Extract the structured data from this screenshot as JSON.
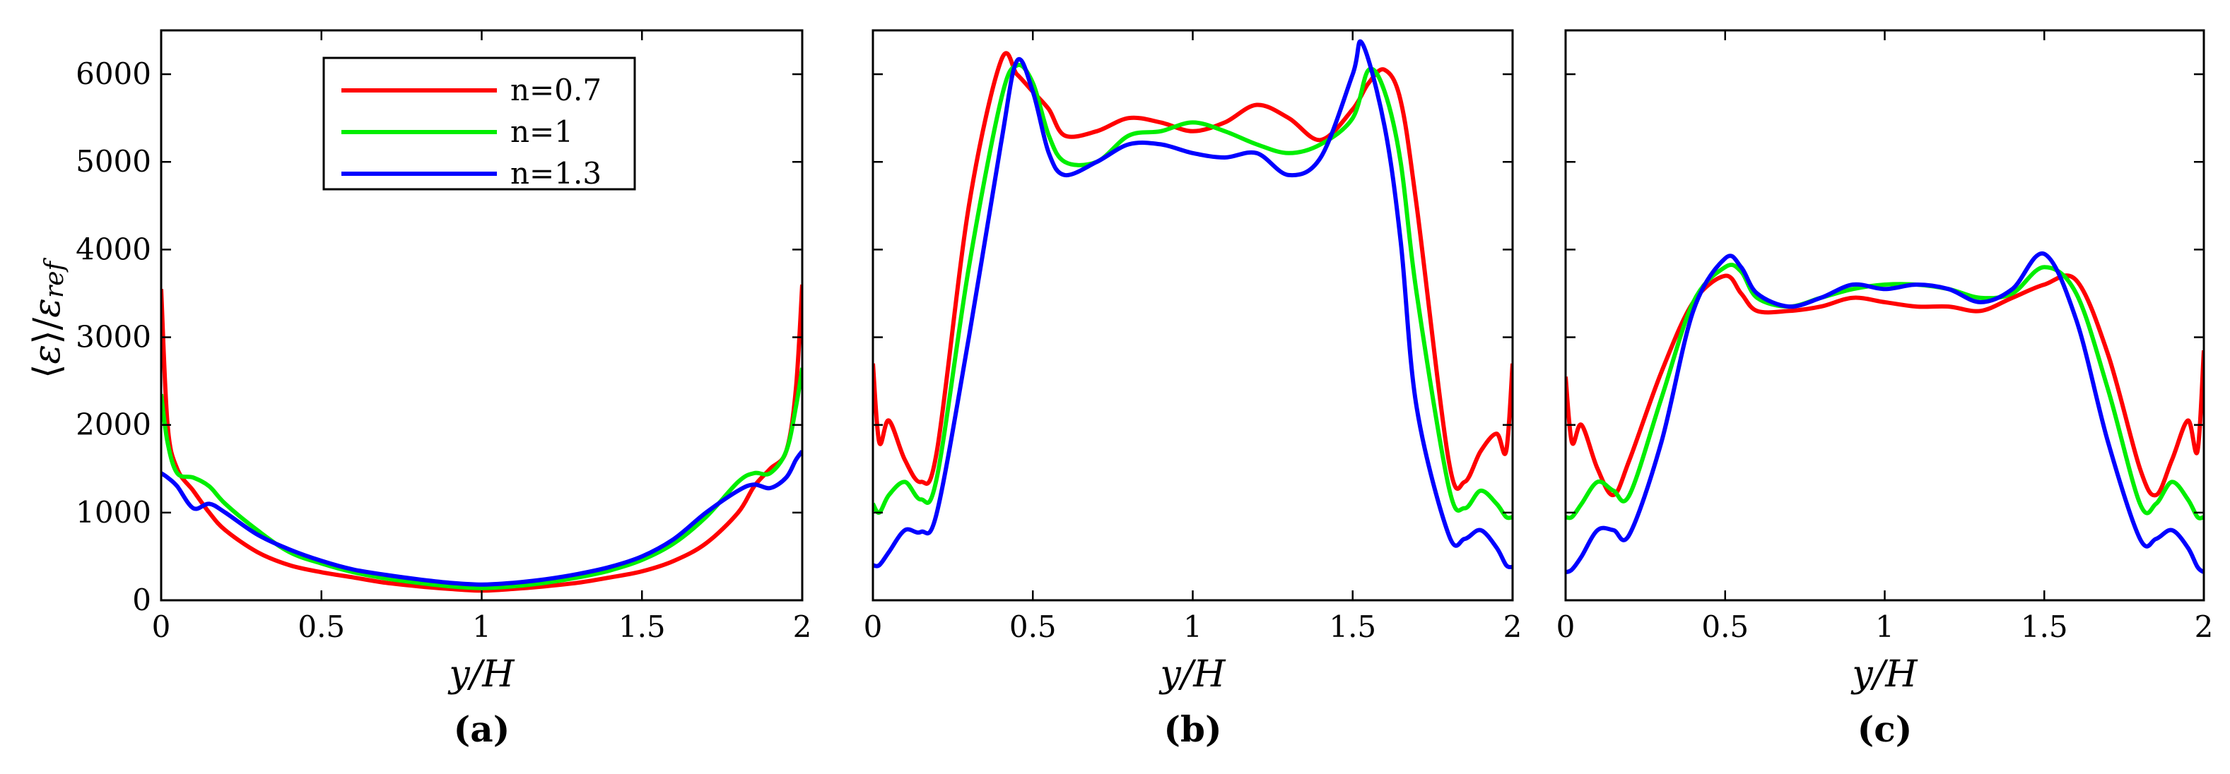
{
  "figure": {
    "ylabel": "⟨ε⟩/ε_ref",
    "legend": [
      {
        "label": "n=0.7",
        "color": "#ff0000"
      },
      {
        "label": "n=1",
        "color": "#00ee00"
      },
      {
        "label": "n=1.3",
        "color": "#0000ff"
      }
    ]
  },
  "chart_data": [
    {
      "type": "line",
      "panel_label": "(a)",
      "xlabel": "y/H",
      "ylabel": "⟨ε⟩/ε_ref",
      "xlim": [
        0,
        2
      ],
      "ylim": [
        0,
        6500
      ],
      "xticks": [
        0,
        0.5,
        1,
        1.5,
        2
      ],
      "xtick_labels": [
        "0",
        "0.5",
        "1",
        "1.5",
        "2"
      ],
      "yticks": [
        0,
        1000,
        2000,
        3000,
        4000,
        5000,
        6000
      ],
      "ytick_labels": [
        "0",
        "1000",
        "2000",
        "3000",
        "4000",
        "5000",
        "6000"
      ],
      "legend_position": "top-center",
      "series": [
        {
          "name": "n=0.7",
          "color": "#ff0000",
          "x": [
            0,
            0.02,
            0.05,
            0.1,
            0.15,
            0.2,
            0.3,
            0.4,
            0.5,
            0.6,
            0.7,
            0.8,
            0.9,
            1.0,
            1.1,
            1.2,
            1.3,
            1.4,
            1.5,
            1.6,
            1.7,
            1.8,
            1.85,
            1.9,
            1.95,
            1.98,
            2.0
          ],
          "y": [
            3550,
            2000,
            1500,
            1250,
            1000,
            800,
            550,
            400,
            320,
            260,
            200,
            160,
            130,
            110,
            130,
            160,
            200,
            260,
            330,
            450,
            650,
            1000,
            1300,
            1500,
            1700,
            2400,
            3600
          ]
        },
        {
          "name": "n=1",
          "color": "#00ee00",
          "x": [
            0,
            0.02,
            0.05,
            0.1,
            0.15,
            0.2,
            0.3,
            0.4,
            0.5,
            0.6,
            0.7,
            0.8,
            0.9,
            1.0,
            1.1,
            1.2,
            1.3,
            1.4,
            1.5,
            1.6,
            1.7,
            1.8,
            1.85,
            1.9,
            1.95,
            1.98,
            2.0
          ],
          "y": [
            2350,
            1800,
            1450,
            1400,
            1300,
            1100,
            800,
            550,
            420,
            320,
            250,
            200,
            160,
            140,
            160,
            200,
            260,
            340,
            460,
            650,
            950,
            1350,
            1450,
            1450,
            1700,
            2200,
            2650
          ]
        },
        {
          "name": "n=1.3",
          "color": "#0000ff",
          "x": [
            0,
            0.02,
            0.05,
            0.1,
            0.15,
            0.2,
            0.3,
            0.4,
            0.5,
            0.6,
            0.7,
            0.8,
            0.9,
            1.0,
            1.1,
            1.2,
            1.3,
            1.4,
            1.5,
            1.6,
            1.7,
            1.8,
            1.85,
            1.9,
            1.95,
            1.98,
            2.0
          ],
          "y": [
            1450,
            1400,
            1300,
            1050,
            1100,
            1000,
            750,
            580,
            450,
            350,
            290,
            240,
            200,
            180,
            200,
            240,
            300,
            380,
            500,
            700,
            1000,
            1250,
            1320,
            1280,
            1400,
            1600,
            1700
          ]
        }
      ]
    },
    {
      "type": "line",
      "panel_label": "(b)",
      "xlabel": "y/H",
      "xlim": [
        0,
        2
      ],
      "ylim": [
        0,
        6500
      ],
      "xticks": [
        0,
        0.5,
        1,
        1.5,
        2
      ],
      "xtick_labels": [
        "0",
        "0.5",
        "1",
        "1.5",
        "2"
      ],
      "yticks": [
        0,
        1000,
        2000,
        3000,
        4000,
        5000,
        6000
      ],
      "series": [
        {
          "name": "n=0.7",
          "color": "#ff0000",
          "x": [
            0,
            0.02,
            0.05,
            0.1,
            0.15,
            0.2,
            0.3,
            0.4,
            0.45,
            0.5,
            0.55,
            0.6,
            0.7,
            0.8,
            0.9,
            1.0,
            1.1,
            1.2,
            1.3,
            1.4,
            1.5,
            1.55,
            1.6,
            1.65,
            1.7,
            1.8,
            1.85,
            1.9,
            1.95,
            1.98,
            2.0
          ],
          "y": [
            2700,
            1800,
            2050,
            1600,
            1350,
            1700,
            4500,
            6150,
            6000,
            5800,
            5600,
            5300,
            5350,
            5500,
            5450,
            5350,
            5450,
            5650,
            5500,
            5250,
            5600,
            5900,
            6050,
            5700,
            4500,
            1600,
            1350,
            1700,
            1900,
            1700,
            2700
          ]
        },
        {
          "name": "n=1",
          "color": "#00ee00",
          "x": [
            0,
            0.02,
            0.05,
            0.1,
            0.15,
            0.2,
            0.3,
            0.4,
            0.45,
            0.5,
            0.55,
            0.6,
            0.7,
            0.8,
            0.9,
            1.0,
            1.1,
            1.2,
            1.3,
            1.4,
            1.5,
            1.55,
            1.6,
            1.65,
            1.7,
            1.8,
            1.85,
            1.9,
            1.95,
            1.98,
            2.0
          ],
          "y": [
            1100,
            1000,
            1200,
            1350,
            1150,
            1400,
            3800,
            5700,
            6100,
            5900,
            5300,
            5000,
            5000,
            5300,
            5350,
            5450,
            5350,
            5200,
            5100,
            5200,
            5500,
            6050,
            5800,
            5000,
            3500,
            1300,
            1050,
            1250,
            1100,
            950,
            950
          ]
        },
        {
          "name": "n=1.3",
          "color": "#0000ff",
          "x": [
            0,
            0.02,
            0.05,
            0.1,
            0.15,
            0.2,
            0.3,
            0.4,
            0.45,
            0.5,
            0.55,
            0.6,
            0.7,
            0.8,
            0.9,
            1.0,
            1.1,
            1.2,
            1.3,
            1.4,
            1.5,
            1.53,
            1.6,
            1.65,
            1.7,
            1.8,
            1.85,
            1.9,
            1.95,
            1.98,
            2.0
          ],
          "y": [
            400,
            400,
            550,
            800,
            780,
            1000,
            3000,
            5200,
            6150,
            5800,
            5100,
            4850,
            5000,
            5200,
            5200,
            5100,
            5050,
            5100,
            4850,
            5050,
            6000,
            6350,
            5400,
            4100,
            2200,
            750,
            700,
            800,
            600,
            400,
            380
          ]
        }
      ]
    },
    {
      "type": "line",
      "panel_label": "(c)",
      "xlabel": "y/H",
      "xlim": [
        0,
        2
      ],
      "ylim": [
        0,
        6500
      ],
      "xticks": [
        0,
        0.5,
        1,
        1.5,
        2
      ],
      "xtick_labels": [
        "0",
        "0.5",
        "1",
        "1.5",
        "2"
      ],
      "yticks": [
        0,
        1000,
        2000,
        3000,
        4000,
        5000,
        6000
      ],
      "series": [
        {
          "name": "n=0.7",
          "color": "#ff0000",
          "x": [
            0,
            0.02,
            0.05,
            0.1,
            0.15,
            0.2,
            0.3,
            0.4,
            0.5,
            0.55,
            0.6,
            0.7,
            0.8,
            0.9,
            1.0,
            1.1,
            1.2,
            1.3,
            1.4,
            1.5,
            1.6,
            1.7,
            1.8,
            1.85,
            1.9,
            1.95,
            1.98,
            2.0
          ],
          "y": [
            2550,
            1800,
            2000,
            1500,
            1200,
            1600,
            2600,
            3400,
            3700,
            3500,
            3300,
            3300,
            3350,
            3450,
            3400,
            3350,
            3350,
            3300,
            3450,
            3600,
            3650,
            2800,
            1500,
            1200,
            1600,
            2050,
            1700,
            2850
          ]
        },
        {
          "name": "n=1",
          "color": "#00ee00",
          "x": [
            0,
            0.02,
            0.05,
            0.1,
            0.15,
            0.2,
            0.3,
            0.4,
            0.5,
            0.55,
            0.6,
            0.7,
            0.8,
            0.9,
            1.0,
            1.1,
            1.2,
            1.3,
            1.4,
            1.5,
            1.6,
            1.7,
            1.8,
            1.85,
            1.9,
            1.95,
            1.98,
            2.0
          ],
          "y": [
            950,
            950,
            1100,
            1350,
            1250,
            1200,
            2300,
            3400,
            3800,
            3750,
            3450,
            3350,
            3450,
            3550,
            3600,
            3600,
            3550,
            3450,
            3500,
            3800,
            3500,
            2400,
            1100,
            1100,
            1350,
            1150,
            950,
            950
          ]
        },
        {
          "name": "n=1.3",
          "color": "#0000ff",
          "x": [
            0,
            0.02,
            0.05,
            0.1,
            0.15,
            0.2,
            0.3,
            0.4,
            0.5,
            0.55,
            0.6,
            0.7,
            0.8,
            0.9,
            1.0,
            1.1,
            1.2,
            1.3,
            1.4,
            1.5,
            1.6,
            1.7,
            1.8,
            1.85,
            1.9,
            1.95,
            1.98,
            2.0
          ],
          "y": [
            320,
            350,
            500,
            800,
            800,
            750,
            1800,
            3300,
            3900,
            3800,
            3500,
            3350,
            3450,
            3600,
            3550,
            3600,
            3550,
            3400,
            3550,
            3950,
            3200,
            1800,
            700,
            700,
            800,
            600,
            380,
            320
          ]
        }
      ]
    }
  ]
}
